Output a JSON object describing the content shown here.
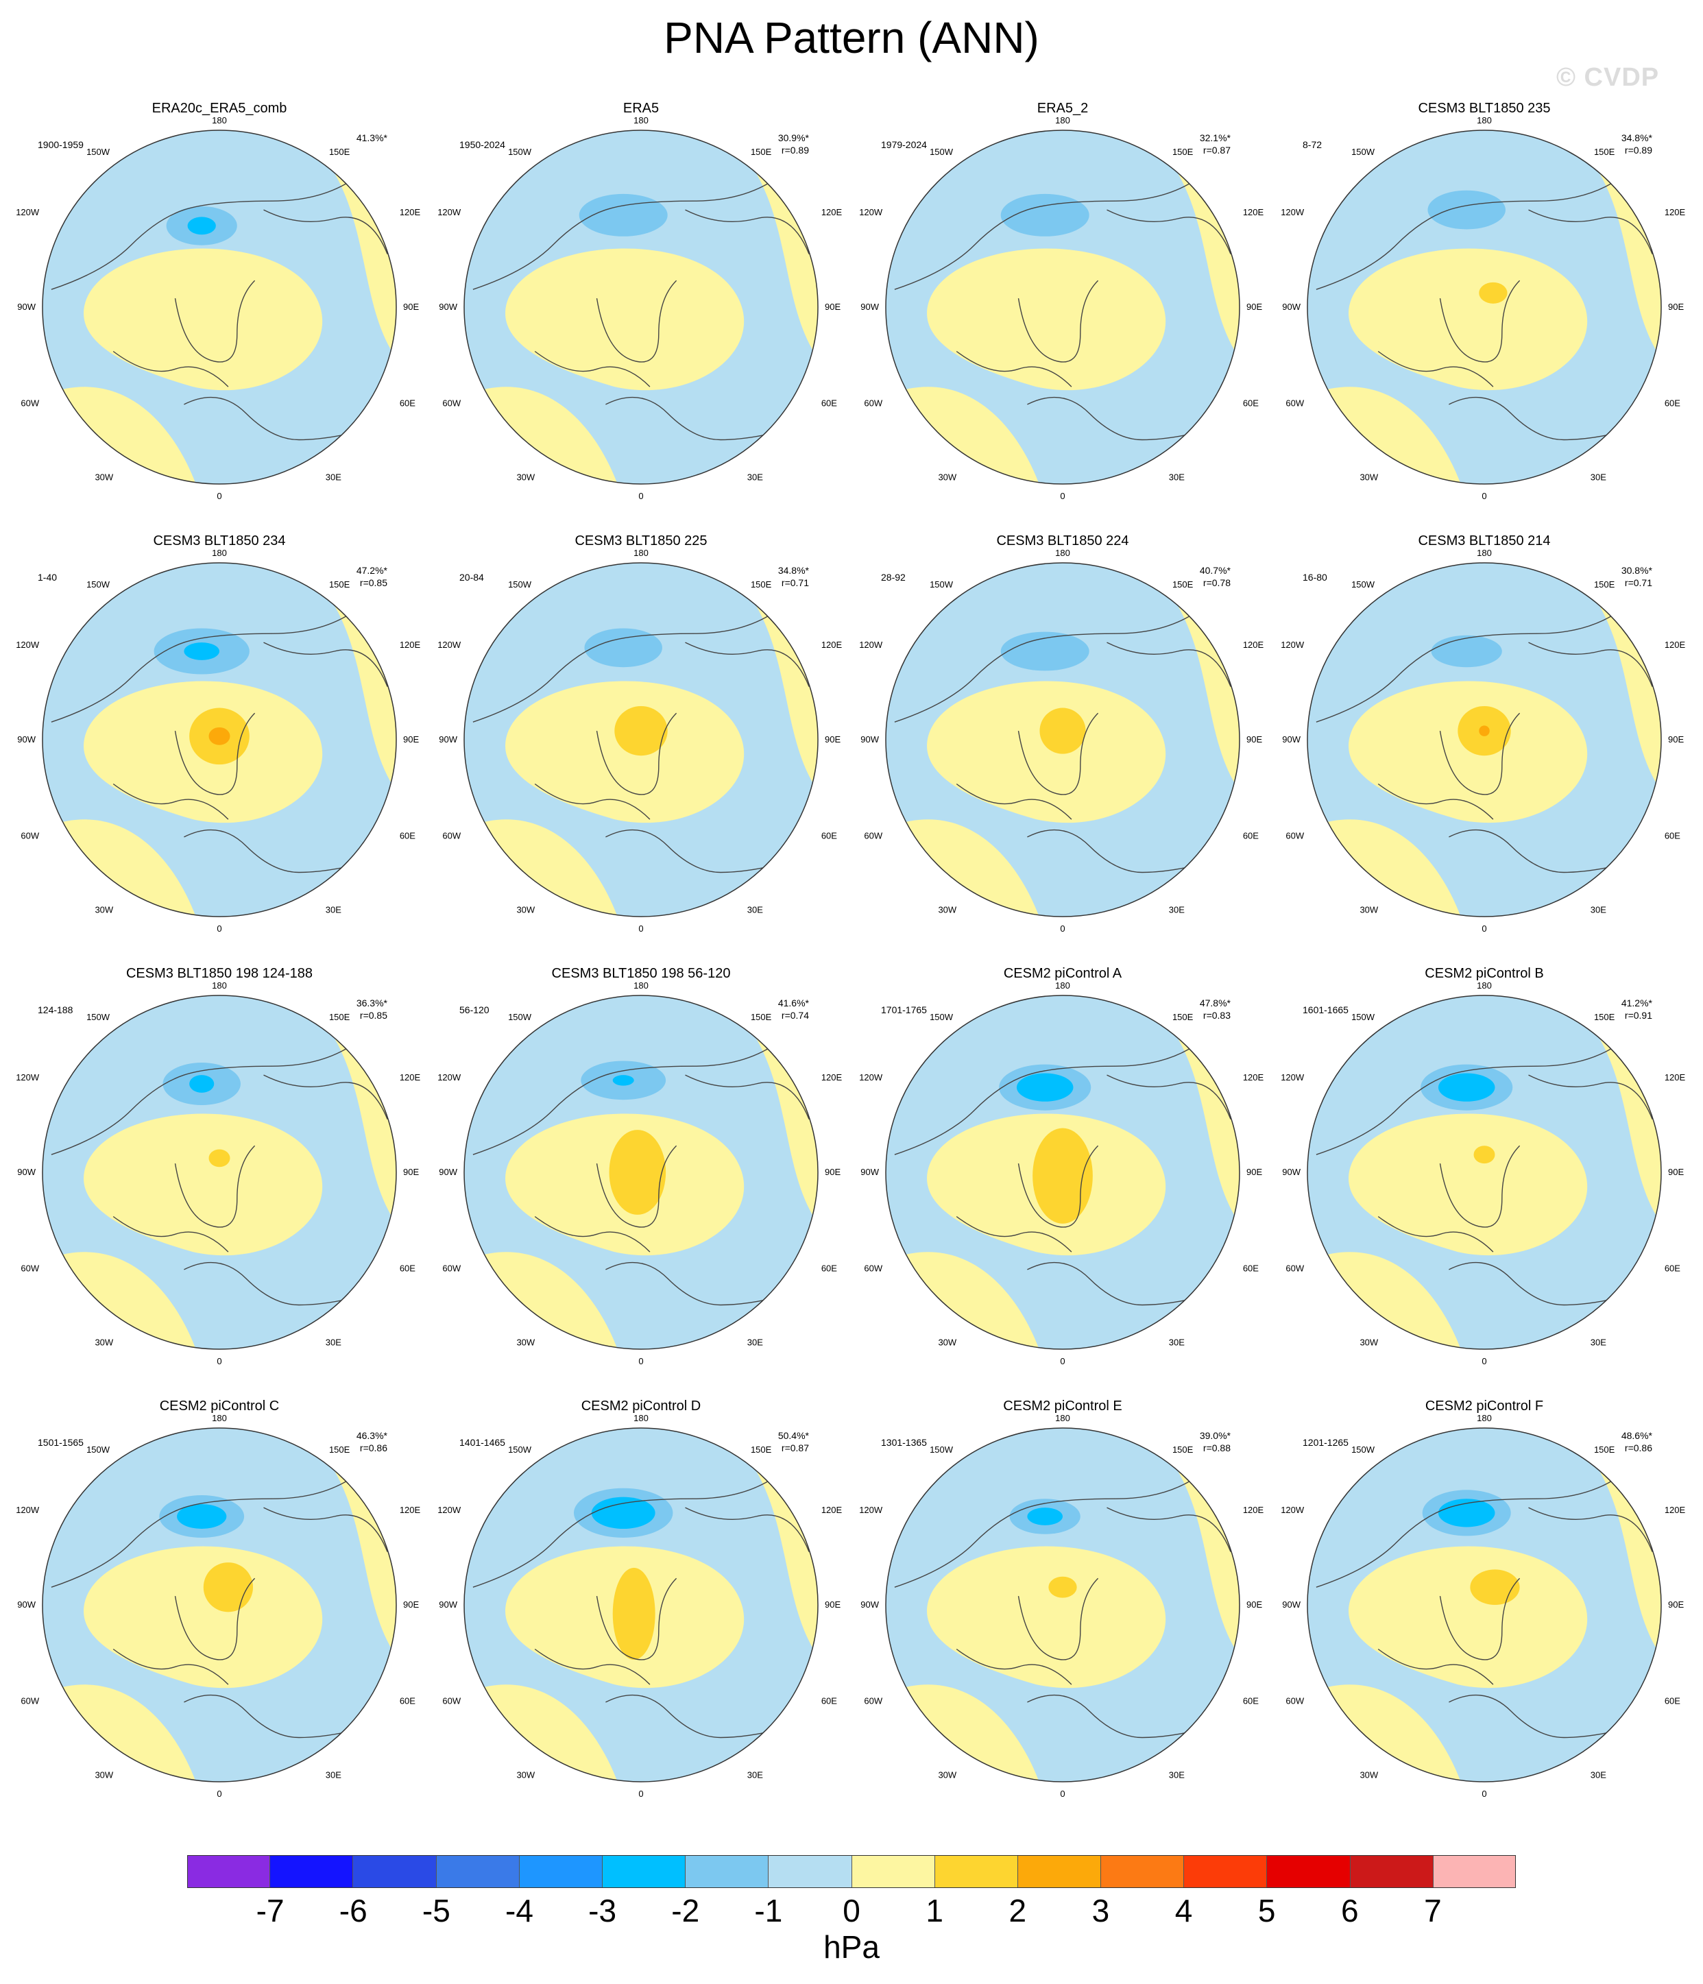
{
  "title": "PNA Pattern (ANN)",
  "watermark": "© CVDP",
  "colors": {
    "neg_fill": "#b5def2",
    "pos_fill": "#fdf6a1",
    "land_outline": "#444444"
  },
  "lon_labels": [
    "180",
    "150W",
    "150E",
    "120W",
    "120E",
    "90W",
    "90E",
    "60W",
    "60E",
    "30W",
    "30E",
    "0"
  ],
  "panels": [
    {
      "title": "ERA20c_ERA5_comb",
      "years": "1900-1959",
      "pct": "41.3%*",
      "r": ""
    },
    {
      "title": "ERA5",
      "years": "1950-2024",
      "pct": "30.9%*",
      "r": "r=0.89"
    },
    {
      "title": "ERA5_2",
      "years": "1979-2024",
      "pct": "32.1%*",
      "r": "r=0.87"
    },
    {
      "title": "CESM3 BLT1850 235",
      "years": "8-72",
      "pct": "34.8%*",
      "r": "r=0.89"
    },
    {
      "title": "CESM3 BLT1850 234",
      "years": "1-40",
      "pct": "47.2%*",
      "r": "r=0.85"
    },
    {
      "title": "CESM3 BLT1850 225",
      "years": "20-84",
      "pct": "34.8%*",
      "r": "r=0.71"
    },
    {
      "title": "CESM3 BLT1850 224",
      "years": "28-92",
      "pct": "40.7%*",
      "r": "r=0.78"
    },
    {
      "title": "CESM3 BLT1850 214",
      "years": "16-80",
      "pct": "30.8%*",
      "r": "r=0.71"
    },
    {
      "title": "CESM3 BLT1850 198 124-188",
      "years": "124-188",
      "pct": "36.3%*",
      "r": "r=0.85"
    },
    {
      "title": "CESM3 BLT1850 198 56-120",
      "years": "56-120",
      "pct": "41.6%*",
      "r": "r=0.74"
    },
    {
      "title": "CESM2 piControl A",
      "years": "1701-1765",
      "pct": "47.8%*",
      "r": "r=0.83"
    },
    {
      "title": "CESM2 piControl B",
      "years": "1601-1665",
      "pct": "41.2%*",
      "r": "r=0.91"
    },
    {
      "title": "CESM2 piControl C",
      "years": "1501-1565",
      "pct": "46.3%*",
      "r": "r=0.86"
    },
    {
      "title": "CESM2 piControl D",
      "years": "1401-1465",
      "pct": "50.4%*",
      "r": "r=0.87"
    },
    {
      "title": "CESM2 piControl E",
      "years": "1301-1365",
      "pct": "39.0%*",
      "r": "r=0.88"
    },
    {
      "title": "CESM2 piControl F",
      "years": "1201-1265",
      "pct": "48.6%*",
      "r": "r=0.86"
    }
  ],
  "colorbar": {
    "units": "hPa",
    "colors": [
      "#8a2be2",
      "#1414ff",
      "#2a4ae6",
      "#3a7ae8",
      "#1e96ff",
      "#00bfff",
      "#7cc8f0",
      "#b5def2",
      "#fdf6a1",
      "#fdd530",
      "#fca90a",
      "#fc7a14",
      "#fc3c08",
      "#e50000",
      "#cc1919",
      "#fcb4b4"
    ],
    "tick_labels": [
      "-7",
      "-6",
      "-5",
      "-4",
      "-3",
      "-2",
      "-1",
      "0",
      "1",
      "2",
      "3",
      "4",
      "5",
      "6",
      "7"
    ]
  }
}
